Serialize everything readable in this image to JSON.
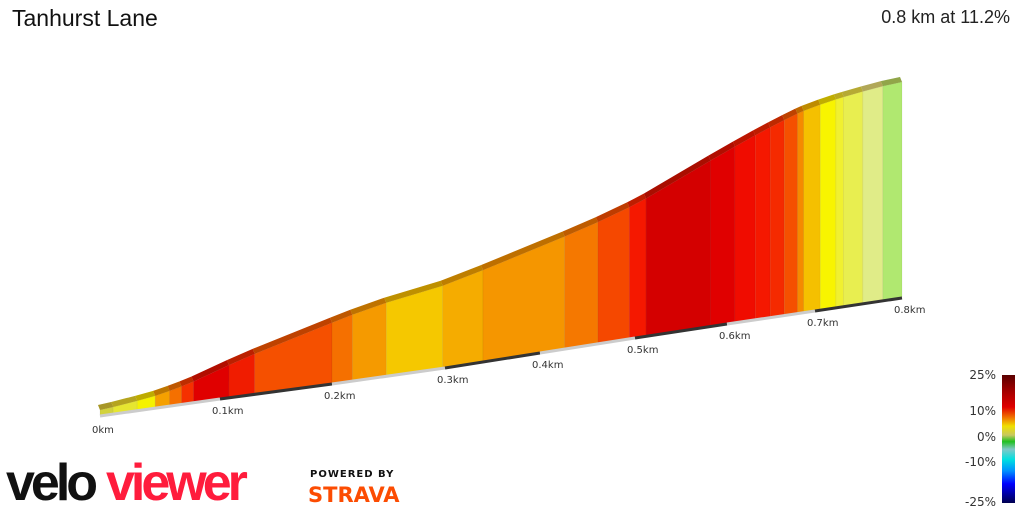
{
  "header": {
    "title": "Tanhurst Lane",
    "summary": "0.8 km at 11.2%"
  },
  "chart_data": {
    "type": "area",
    "title": "Tanhurst Lane",
    "subtitle": "0.8 km at 11.2%",
    "x_unit": "km",
    "xlim": [
      0,
      0.8
    ],
    "ticks": [
      "0km",
      "0.1km",
      "0.2km",
      "0.3km",
      "0.4km",
      "0.5km",
      "0.6km",
      "0.7km",
      "0.8km"
    ],
    "segments": [
      {
        "start": 0.0,
        "end": 0.011,
        "gradient": 5,
        "color": "#d2d23c"
      },
      {
        "start": 0.011,
        "end": 0.031,
        "gradient": 7,
        "color": "#e6e630"
      },
      {
        "start": 0.031,
        "end": 0.046,
        "gradient": 8,
        "color": "#f5f200"
      },
      {
        "start": 0.046,
        "end": 0.058,
        "gradient": 12,
        "color": "#f5a000"
      },
      {
        "start": 0.058,
        "end": 0.068,
        "gradient": 14,
        "color": "#f57000"
      },
      {
        "start": 0.068,
        "end": 0.078,
        "gradient": 16,
        "color": "#f53000"
      },
      {
        "start": 0.078,
        "end": 0.108,
        "gradient": 19,
        "color": "#e00000"
      },
      {
        "start": 0.108,
        "end": 0.131,
        "gradient": 17,
        "color": "#f01c00"
      },
      {
        "start": 0.131,
        "end": 0.2,
        "gradient": 15,
        "color": "#f55000"
      },
      {
        "start": 0.2,
        "end": 0.218,
        "gradient": 14,
        "color": "#f57000"
      },
      {
        "start": 0.218,
        "end": 0.248,
        "gradient": 12,
        "color": "#f59a00"
      },
      {
        "start": 0.248,
        "end": 0.298,
        "gradient": 9,
        "color": "#f5c800"
      },
      {
        "start": 0.298,
        "end": 0.34,
        "gradient": 11,
        "color": "#f5ac00"
      },
      {
        "start": 0.34,
        "end": 0.426,
        "gradient": 12,
        "color": "#f59600"
      },
      {
        "start": 0.426,
        "end": 0.461,
        "gradient": 13,
        "color": "#f57800"
      },
      {
        "start": 0.461,
        "end": 0.494,
        "gradient": 15,
        "color": "#f54800"
      },
      {
        "start": 0.494,
        "end": 0.512,
        "gradient": 17,
        "color": "#f51800"
      },
      {
        "start": 0.512,
        "end": 0.582,
        "gradient": 20,
        "color": "#d40000"
      },
      {
        "start": 0.582,
        "end": 0.609,
        "gradient": 19,
        "color": "#e00000"
      },
      {
        "start": 0.609,
        "end": 0.632,
        "gradient": 18,
        "color": "#f00c00"
      },
      {
        "start": 0.632,
        "end": 0.649,
        "gradient": 17,
        "color": "#f51800"
      },
      {
        "start": 0.649,
        "end": 0.665,
        "gradient": 16,
        "color": "#f52a00"
      },
      {
        "start": 0.665,
        "end": 0.68,
        "gradient": 15,
        "color": "#f55000"
      },
      {
        "start": 0.68,
        "end": 0.687,
        "gradient": 13,
        "color": "#f58a00"
      },
      {
        "start": 0.687,
        "end": 0.706,
        "gradient": 10,
        "color": "#f5c000"
      },
      {
        "start": 0.706,
        "end": 0.724,
        "gradient": 8,
        "color": "#f8f400"
      },
      {
        "start": 0.724,
        "end": 0.733,
        "gradient": 7,
        "color": "#f0f030"
      },
      {
        "start": 0.733,
        "end": 0.755,
        "gradient": 6,
        "color": "#e8ee50"
      },
      {
        "start": 0.755,
        "end": 0.778,
        "gradient": 5,
        "color": "#e0ec88"
      },
      {
        "start": 0.778,
        "end": 0.8,
        "gradient": 3,
        "color": "#b0e870"
      }
    ],
    "legend": {
      "labels": [
        "25%",
        "10%",
        "0%",
        "-10%",
        "-25%"
      ],
      "placement": "bottom-right"
    }
  },
  "branding": {
    "logo_text": "veloviewer",
    "powered_by": "POWERED BY",
    "strava": "STRAVA",
    "logo_color": "#ff1c3c",
    "strava_color": "#fc4c02"
  }
}
